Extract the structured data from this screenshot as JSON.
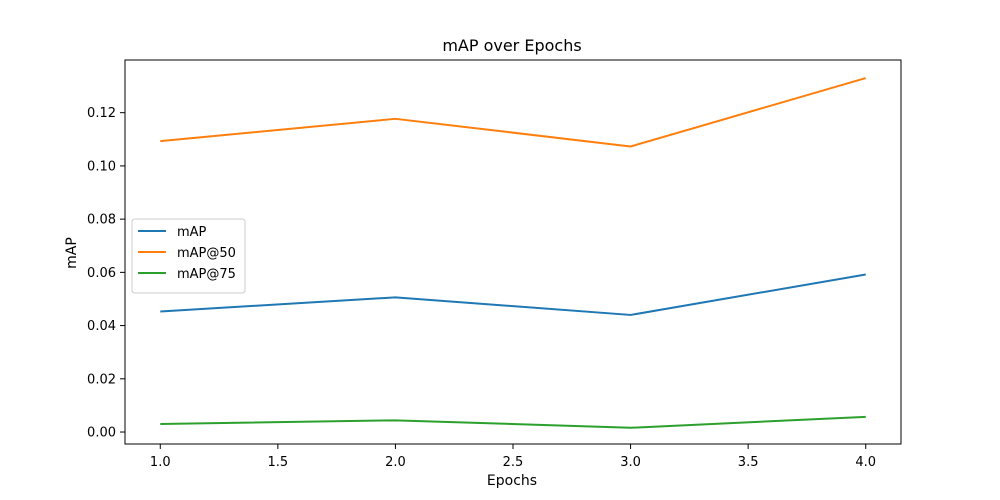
{
  "chart_data": {
    "type": "line",
    "title": "mAP over Epochs",
    "xlabel": "Epochs",
    "ylabel": "mAP",
    "x": [
      1,
      2,
      3,
      4
    ],
    "xlim": [
      0.85,
      4.15
    ],
    "ylim": [
      -0.0045,
      0.1398
    ],
    "xticks": [
      1.0,
      1.5,
      2.0,
      2.5,
      3.0,
      3.5,
      4.0
    ],
    "xtick_labels": [
      "1.0",
      "1.5",
      "2.0",
      "2.5",
      "3.0",
      "3.5",
      "4.0"
    ],
    "yticks": [
      0.0,
      0.02,
      0.04,
      0.06,
      0.08,
      0.1,
      0.12
    ],
    "ytick_labels": [
      "0.00",
      "0.02",
      "0.04",
      "0.06",
      "0.08",
      "0.10",
      "0.12"
    ],
    "grid": false,
    "legend_position": "center-left",
    "series": [
      {
        "name": "mAP",
        "color": "#1f77b4",
        "values": [
          0.0453,
          0.0506,
          0.044,
          0.0592
        ]
      },
      {
        "name": "mAP@50",
        "color": "#ff7f0e",
        "values": [
          0.1093,
          0.1177,
          0.1073,
          0.133
        ]
      },
      {
        "name": "mAP@75",
        "color": "#2ca02c",
        "values": [
          0.003,
          0.0044,
          0.0016,
          0.0057
        ]
      }
    ]
  }
}
